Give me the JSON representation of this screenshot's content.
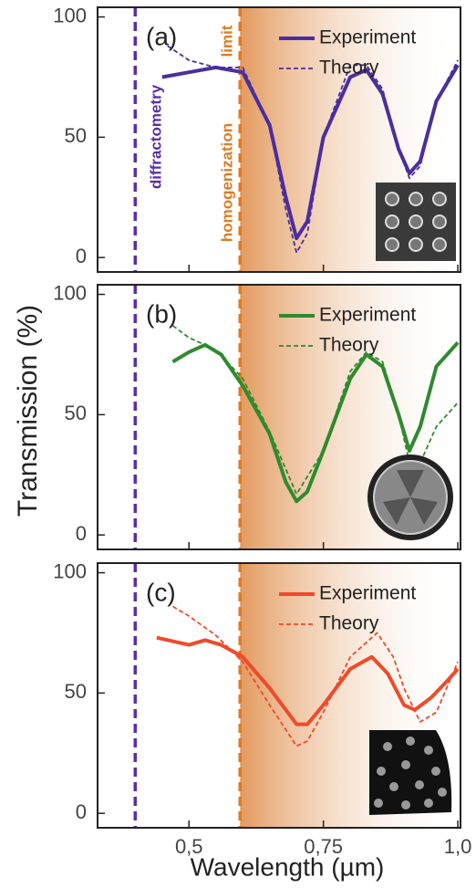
{
  "chart_data": [
    {
      "type": "line",
      "panel_label": "(a)",
      "ylim": [
        -6,
        104
      ],
      "yticks": [
        0,
        50,
        100
      ],
      "xlim": [
        0.33,
        1.005
      ],
      "legend": "upper right",
      "annotations": [
        "diffractometry",
        "homogenization",
        "limit"
      ],
      "vlines": [
        {
          "value": 0.4,
          "color": "#5a2ea8"
        },
        {
          "value": 0.595,
          "color": "#e07a20"
        }
      ],
      "series": [
        {
          "name": "Experiment",
          "color": "#4b2e9e",
          "style": "solid",
          "x": [
            0.45,
            0.5,
            0.55,
            0.6,
            0.65,
            0.68,
            0.7,
            0.72,
            0.75,
            0.8,
            0.83,
            0.86,
            0.89,
            0.91,
            0.93,
            0.96,
            1.0
          ],
          "values": [
            75,
            77,
            79,
            77,
            55,
            25,
            8,
            15,
            50,
            75,
            78,
            68,
            45,
            35,
            40,
            65,
            80
          ]
        },
        {
          "name": "Theory",
          "color": "#4b2e9e",
          "style": "dashed",
          "x": [
            0.46,
            0.5,
            0.55,
            0.6,
            0.65,
            0.68,
            0.7,
            0.72,
            0.75,
            0.8,
            0.83,
            0.86,
            0.89,
            0.91,
            0.93,
            0.96,
            1.0
          ],
          "values": [
            88,
            82,
            79,
            79,
            55,
            20,
            2,
            10,
            50,
            80,
            80,
            70,
            45,
            33,
            38,
            65,
            82
          ]
        }
      ]
    },
    {
      "type": "line",
      "panel_label": "(b)",
      "ylim": [
        -6,
        104
      ],
      "yticks": [
        0,
        50,
        100
      ],
      "xlim": [
        0.33,
        1.005
      ],
      "legend": "upper right",
      "ylabel": "Transmission (%)",
      "vlines": [
        {
          "value": 0.4,
          "color": "#5a2ea8"
        },
        {
          "value": 0.595,
          "color": "#e07a20"
        }
      ],
      "series": [
        {
          "name": "Experiment",
          "color": "#2e8b2e",
          "style": "solid",
          "x": [
            0.47,
            0.5,
            0.53,
            0.56,
            0.6,
            0.65,
            0.68,
            0.7,
            0.72,
            0.75,
            0.8,
            0.83,
            0.86,
            0.89,
            0.91,
            0.93,
            0.96,
            1.0
          ],
          "values": [
            72,
            76,
            79,
            75,
            62,
            42,
            22,
            14,
            18,
            35,
            65,
            75,
            70,
            50,
            35,
            45,
            70,
            80
          ]
        },
        {
          "name": "Theory",
          "color": "#2e8b2e",
          "style": "dashed",
          "x": [
            0.47,
            0.5,
            0.55,
            0.6,
            0.65,
            0.7,
            0.75,
            0.8,
            0.83,
            0.86,
            0.89,
            0.91,
            0.93,
            0.96,
            1.0
          ],
          "values": [
            87,
            82,
            77,
            65,
            43,
            17,
            35,
            68,
            76,
            72,
            50,
            30,
            30,
            45,
            55
          ]
        }
      ]
    },
    {
      "type": "line",
      "panel_label": "(c)",
      "ylim": [
        -6,
        104
      ],
      "yticks": [
        0,
        50,
        100
      ],
      "xlim": [
        0.33,
        1.005
      ],
      "legend": "upper right",
      "xlabel": "Wavelength (µm)",
      "xticks": [
        {
          "value": 0.5,
          "label": "0,5"
        },
        {
          "value": 0.75,
          "label": "0,75"
        },
        {
          "value": 1.0,
          "label": "1,0"
        }
      ],
      "vlines": [
        {
          "value": 0.4,
          "color": "#5a2ea8"
        },
        {
          "value": 0.595,
          "color": "#e07a20"
        }
      ],
      "series": [
        {
          "name": "Experiment",
          "color": "#f04a2a",
          "style": "solid",
          "x": [
            0.44,
            0.5,
            0.53,
            0.56,
            0.6,
            0.65,
            0.7,
            0.72,
            0.75,
            0.8,
            0.84,
            0.87,
            0.9,
            0.92,
            0.95,
            0.98,
            1.0
          ],
          "values": [
            73,
            70,
            72,
            70,
            65,
            52,
            37,
            37,
            45,
            60,
            65,
            58,
            45,
            43,
            48,
            55,
            60
          ]
        },
        {
          "name": "Theory",
          "color": "#f04a2a",
          "style": "dashed",
          "x": [
            0.47,
            0.5,
            0.55,
            0.6,
            0.65,
            0.7,
            0.72,
            0.75,
            0.8,
            0.85,
            0.88,
            0.9,
            0.93,
            0.96,
            1.0
          ],
          "values": [
            86,
            82,
            74,
            63,
            45,
            28,
            30,
            42,
            65,
            75,
            65,
            52,
            38,
            42,
            63
          ]
        }
      ]
    }
  ]
}
